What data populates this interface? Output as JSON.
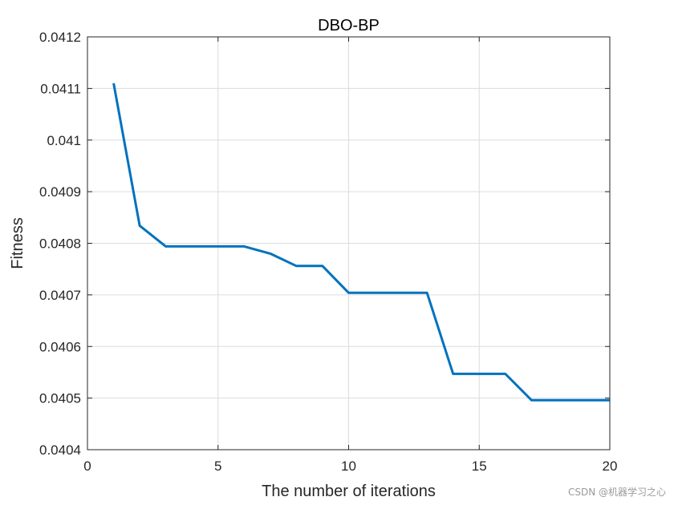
{
  "chart_data": {
    "type": "line",
    "title": "DBO-BP",
    "xlabel": "The number of iterations",
    "ylabel": "Fitness",
    "xlim": [
      0,
      20
    ],
    "ylim": [
      0.0404,
      0.0412
    ],
    "xticks": [
      0,
      5,
      10,
      15,
      20
    ],
    "xtick_labels": [
      "0",
      "5",
      "10",
      "15",
      "20"
    ],
    "yticks": [
      0.0404,
      0.0405,
      0.0406,
      0.0407,
      0.0408,
      0.0409,
      0.041,
      0.0411,
      0.0412
    ],
    "ytick_labels": [
      "0.0404",
      "0.0405",
      "0.0406",
      "0.0407",
      "0.0408",
      "0.0409",
      "0.041",
      "0.0411",
      "0.0412"
    ],
    "grid": true,
    "box": true,
    "series": [
      {
        "color": "#0072BD",
        "x": [
          1,
          2,
          3,
          4,
          5,
          6,
          7,
          8,
          9,
          10,
          11,
          12,
          13,
          14,
          15,
          16,
          17,
          18,
          19,
          20
        ],
        "y": [
          0.04111,
          0.040834,
          0.040794,
          0.040794,
          0.040794,
          0.040794,
          0.04078,
          0.040756,
          0.040756,
          0.040704,
          0.040704,
          0.040704,
          0.040704,
          0.040547,
          0.040547,
          0.040547,
          0.040496,
          0.040496,
          0.040496,
          0.040496
        ]
      }
    ]
  },
  "watermark": "CSDN @机器学习之心"
}
